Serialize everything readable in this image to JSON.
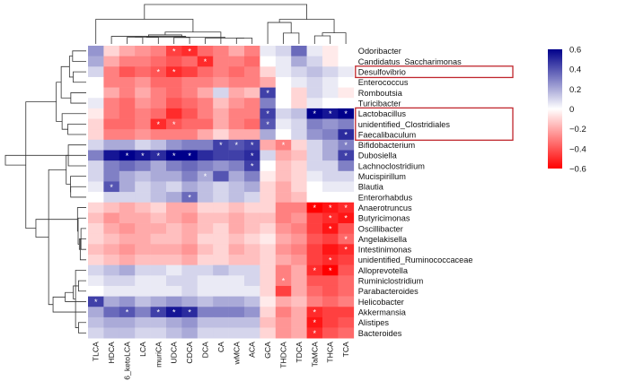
{
  "chart_data": {
    "type": "heatmap",
    "rows": [
      "Odoribacter",
      "Candidatus_Saccharimonas",
      "Desulfovibrio",
      "Enterococcus",
      "Romboutsia",
      "Turicibacter",
      "Lactobacillus",
      "unidentified_Clostridiales",
      "Faecalibaculum",
      "Bifidobacterium",
      "Dubosiella",
      "Lachnoclostridium",
      "Mucispirillum",
      "Blautia",
      "Enterorhabdus",
      "Anaerotruncus",
      "Butyricimonas",
      "Oscillibacter",
      "Angelakisella",
      "Intestinimonas",
      "unidentified_Ruminococcaceae",
      "Alloprevotella",
      "Ruminiclostridium",
      "Parabacteroides",
      "Helicobacter",
      "Akkermansia",
      "Alistipes",
      "Bacteroides"
    ],
    "columns": [
      "TLCA",
      "HDCA",
      "6_ketoLCA",
      "LCA",
      "muriCA",
      "UDCA",
      "CDCA",
      "DCA",
      "CA",
      "wMCA",
      "ACA",
      "GCA",
      "THDCA",
      "TDCA",
      "TaMCA",
      "THCA",
      "TCA"
    ],
    "values": [
      [
        0.25,
        -0.1,
        -0.2,
        -0.25,
        -0.3,
        -0.45,
        -0.5,
        -0.35,
        -0.3,
        -0.2,
        -0.3,
        0.05,
        0.1,
        0.35,
        0.05,
        -0.05,
        0.0
      ],
      [
        0.2,
        -0.2,
        -0.3,
        -0.3,
        -0.35,
        -0.4,
        -0.35,
        -0.5,
        -0.3,
        -0.3,
        -0.35,
        0.0,
        0.05,
        0.2,
        0.1,
        -0.05,
        0.0
      ],
      [
        0.1,
        -0.3,
        -0.4,
        -0.35,
        -0.4,
        -0.5,
        -0.45,
        -0.35,
        -0.3,
        -0.35,
        -0.3,
        -0.1,
        0.05,
        0.1,
        0.15,
        0.1,
        0.05
      ],
      [
        0.0,
        -0.3,
        -0.3,
        -0.25,
        -0.35,
        -0.35,
        -0.3,
        -0.3,
        -0.25,
        -0.3,
        -0.3,
        -0.2,
        0.0,
        0.05,
        0.1,
        0.05,
        0.0
      ],
      [
        0.0,
        -0.2,
        -0.3,
        -0.2,
        -0.3,
        -0.35,
        -0.3,
        -0.2,
        0.1,
        -0.2,
        -0.15,
        0.45,
        0.0,
        -0.1,
        0.1,
        0.05,
        -0.05
      ],
      [
        0.05,
        -0.3,
        -0.35,
        -0.25,
        -0.3,
        -0.4,
        -0.35,
        -0.3,
        -0.15,
        -0.25,
        -0.3,
        0.3,
        0.0,
        -0.1,
        0.05,
        0.0,
        0.0
      ],
      [
        -0.05,
        -0.3,
        -0.35,
        -0.3,
        -0.35,
        -0.5,
        -0.4,
        -0.3,
        -0.2,
        -0.3,
        -0.3,
        0.45,
        0.1,
        0.15,
        0.7,
        0.55,
        0.6
      ],
      [
        -0.1,
        -0.35,
        -0.35,
        -0.3,
        -0.5,
        -0.4,
        -0.35,
        -0.35,
        -0.2,
        -0.3,
        -0.35,
        0.4,
        0.05,
        0.1,
        0.3,
        0.25,
        0.3
      ],
      [
        -0.1,
        -0.3,
        -0.3,
        -0.25,
        -0.3,
        -0.3,
        -0.3,
        -0.2,
        -0.1,
        -0.2,
        -0.2,
        0.2,
        0.0,
        0.1,
        0.25,
        0.3,
        0.5
      ],
      [
        0.1,
        0.2,
        0.2,
        0.1,
        0.15,
        0.25,
        0.3,
        0.3,
        0.45,
        0.4,
        0.45,
        -0.2,
        -0.3,
        -0.1,
        0.1,
        0.2,
        0.3
      ],
      [
        0.3,
        0.55,
        0.6,
        0.55,
        0.5,
        0.6,
        0.65,
        0.5,
        0.45,
        0.45,
        0.5,
        0.1,
        -0.2,
        -0.15,
        0.1,
        0.2,
        0.45
      ],
      [
        0.1,
        0.3,
        0.35,
        0.3,
        0.2,
        0.3,
        0.35,
        0.3,
        0.25,
        0.3,
        0.45,
        0.0,
        -0.15,
        -0.1,
        0.1,
        0.1,
        0.3
      ],
      [
        0.1,
        0.3,
        0.2,
        0.15,
        0.2,
        0.2,
        0.3,
        0.2,
        0.4,
        0.2,
        0.3,
        -0.05,
        -0.15,
        -0.1,
        0.05,
        0.1,
        0.1
      ],
      [
        0.05,
        0.4,
        0.2,
        0.1,
        0.15,
        0.1,
        0.2,
        0.15,
        0.1,
        0.15,
        0.2,
        -0.1,
        -0.2,
        -0.1,
        0.0,
        0.05,
        0.05
      ],
      [
        0.0,
        0.1,
        0.1,
        0.1,
        0.15,
        0.2,
        0.35,
        0.15,
        0.1,
        0.15,
        0.1,
        -0.1,
        -0.2,
        -0.15,
        0.0,
        0.0,
        0.0
      ],
      [
        -0.1,
        -0.15,
        -0.2,
        -0.15,
        -0.1,
        -0.2,
        -0.2,
        -0.1,
        -0.1,
        -0.15,
        -0.1,
        -0.1,
        -0.3,
        -0.3,
        -0.6,
        -0.55,
        -0.5
      ],
      [
        -0.15,
        -0.25,
        -0.2,
        -0.2,
        -0.15,
        -0.2,
        -0.25,
        -0.15,
        -0.15,
        -0.2,
        -0.15,
        -0.15,
        -0.3,
        -0.25,
        -0.45,
        -0.5,
        -0.55
      ],
      [
        -0.1,
        -0.2,
        -0.25,
        -0.2,
        -0.2,
        -0.15,
        -0.2,
        -0.15,
        -0.1,
        -0.2,
        -0.15,
        -0.1,
        -0.25,
        -0.3,
        -0.45,
        -0.55,
        -0.4
      ],
      [
        -0.1,
        -0.15,
        -0.2,
        -0.2,
        -0.15,
        -0.15,
        -0.2,
        -0.1,
        -0.1,
        -0.15,
        -0.1,
        -0.05,
        -0.2,
        -0.25,
        -0.4,
        -0.45,
        -0.35
      ],
      [
        -0.15,
        -0.2,
        -0.25,
        -0.2,
        -0.2,
        -0.2,
        -0.25,
        -0.15,
        -0.1,
        -0.2,
        -0.15,
        -0.1,
        -0.25,
        -0.3,
        -0.45,
        -0.55,
        -0.5
      ],
      [
        -0.1,
        -0.15,
        -0.2,
        -0.15,
        -0.15,
        -0.15,
        -0.2,
        -0.1,
        -0.1,
        -0.15,
        -0.15,
        -0.1,
        -0.2,
        -0.25,
        -0.45,
        -0.5,
        -0.45
      ],
      [
        0.1,
        0.15,
        0.2,
        0.1,
        0.1,
        0.05,
        0.1,
        0.1,
        0.15,
        0.1,
        0.1,
        -0.1,
        -0.3,
        -0.2,
        -0.5,
        -0.6,
        -0.4
      ],
      [
        0.05,
        0.1,
        0.1,
        0.05,
        0.05,
        0.1,
        0.1,
        0.05,
        0.05,
        0.05,
        0.1,
        -0.1,
        -0.3,
        -0.2,
        -0.4,
        -0.4,
        -0.35
      ],
      [
        0.0,
        0.05,
        0.05,
        0.05,
        0.05,
        0.05,
        0.1,
        0.05,
        0.05,
        0.05,
        0.05,
        -0.1,
        -0.45,
        -0.2,
        -0.35,
        -0.4,
        -0.35
      ],
      [
        0.45,
        0.2,
        0.25,
        0.15,
        0.2,
        0.25,
        0.2,
        0.15,
        0.2,
        0.2,
        0.15,
        -0.05,
        -0.2,
        -0.15,
        -0.3,
        -0.35,
        -0.3
      ],
      [
        0.2,
        0.35,
        0.4,
        0.3,
        0.45,
        0.55,
        0.5,
        0.3,
        0.3,
        0.3,
        0.25,
        -0.1,
        -0.3,
        -0.2,
        -0.5,
        -0.45,
        -0.45
      ],
      [
        0.15,
        0.2,
        0.2,
        0.15,
        0.15,
        0.2,
        0.25,
        0.15,
        0.15,
        0.15,
        0.15,
        -0.15,
        -0.25,
        -0.2,
        -0.55,
        -0.45,
        -0.4
      ],
      [
        0.1,
        0.15,
        0.15,
        0.1,
        0.1,
        0.15,
        0.2,
        0.1,
        0.1,
        0.1,
        0.1,
        -0.1,
        -0.25,
        -0.2,
        -0.5,
        -0.4,
        -0.35
      ]
    ],
    "significant": [
      [
        0,
        5
      ],
      [
        0,
        6
      ],
      [
        1,
        7
      ],
      [
        2,
        4
      ],
      [
        2,
        5
      ],
      [
        4,
        11
      ],
      [
        6,
        11
      ],
      [
        6,
        14
      ],
      [
        6,
        15
      ],
      [
        6,
        16
      ],
      [
        7,
        4
      ],
      [
        7,
        5
      ],
      [
        7,
        11
      ],
      [
        8,
        16
      ],
      [
        9,
        8
      ],
      [
        9,
        9
      ],
      [
        9,
        10
      ],
      [
        9,
        12
      ],
      [
        9,
        16
      ],
      [
        10,
        2
      ],
      [
        10,
        3
      ],
      [
        10,
        4
      ],
      [
        10,
        5
      ],
      [
        10,
        6
      ],
      [
        10,
        10
      ],
      [
        10,
        16
      ],
      [
        11,
        10
      ],
      [
        12,
        7
      ],
      [
        13,
        1
      ],
      [
        14,
        6
      ],
      [
        15,
        14
      ],
      [
        15,
        15
      ],
      [
        15,
        16
      ],
      [
        16,
        15
      ],
      [
        16,
        16
      ],
      [
        17,
        15
      ],
      [
        18,
        16
      ],
      [
        19,
        16
      ],
      [
        20,
        15
      ],
      [
        21,
        14
      ],
      [
        21,
        15
      ],
      [
        22,
        12
      ],
      [
        24,
        0
      ],
      [
        25,
        2
      ],
      [
        25,
        4
      ],
      [
        25,
        5
      ],
      [
        25,
        6
      ],
      [
        25,
        14
      ],
      [
        26,
        14
      ],
      [
        27,
        14
      ]
    ],
    "highlighted_rows": [
      "Desulfovibrio",
      "Lactobacillus",
      "unidentified_Clostridiales",
      "Faecalibaculum"
    ],
    "colorbar": {
      "ticks": [
        "0.6",
        "0.4",
        "0.2",
        "0",
        "−0.2",
        "−0.4",
        "−0.6"
      ],
      "range": [
        -0.6,
        0.6
      ],
      "low_color": "#ff0000",
      "mid_color": "#ffffff",
      "high_color": "#00008b"
    },
    "marker": "*",
    "highlight_color": "#c0272d",
    "grid": false
  }
}
